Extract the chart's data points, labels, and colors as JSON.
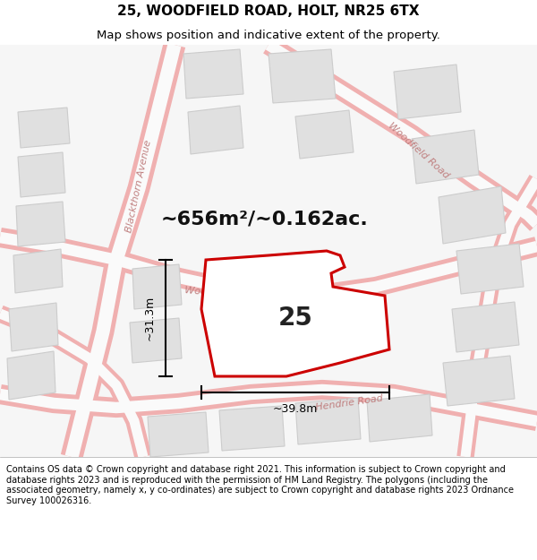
{
  "title": "25, WOODFIELD ROAD, HOLT, NR25 6TX",
  "subtitle": "Map shows position and indicative extent of the property.",
  "area_text": "~656m²/~0.162ac.",
  "property_number": "25",
  "dim_width": "~39.8m",
  "dim_height": "~31.3m",
  "footer": "Contains OS data © Crown copyright and database right 2021. This information is subject to Crown copyright and database rights 2023 and is reproduced with the permission of HM Land Registry. The polygons (including the associated geometry, namely x, y co-ordinates) are subject to Crown copyright and database rights 2023 Ordnance Survey 100026316.",
  "bg_color": "#ffffff",
  "map_bg": "#f8f8f8",
  "road_outline_color": "#f0b0b0",
  "building_fill": "#e0e0e0",
  "building_edge": "#cccccc",
  "property_fill": "#ffffff",
  "property_outline": "#cc0000",
  "road_label_color": "#c08080",
  "dim_color": "#000000",
  "title_color": "#000000",
  "footer_color": "#000000",
  "area_text_color": "#111111",
  "title_fontsize": 11,
  "subtitle_fontsize": 9.5,
  "area_fontsize": 16,
  "prop_num_fontsize": 20,
  "road_label_fontsize": 8,
  "dim_fontsize": 9,
  "footer_fontsize": 7
}
